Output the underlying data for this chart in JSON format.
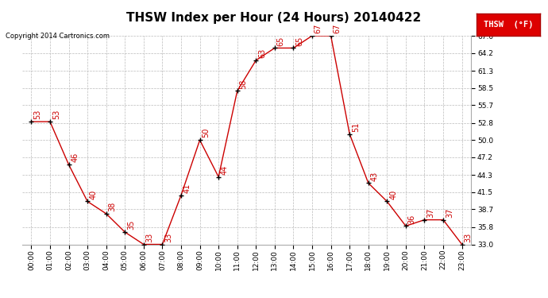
{
  "title": "THSW Index per Hour (24 Hours) 20140422",
  "copyright": "Copyright 2014 Cartronics.com",
  "legend_label": "THSW  (°F)",
  "hours": [
    "00:00",
    "01:00",
    "02:00",
    "03:00",
    "04:00",
    "05:00",
    "06:00",
    "07:00",
    "08:00",
    "09:00",
    "10:00",
    "11:00",
    "12:00",
    "13:00",
    "14:00",
    "15:00",
    "16:00",
    "17:00",
    "18:00",
    "19:00",
    "20:00",
    "21:00",
    "22:00",
    "23:00"
  ],
  "values": [
    53,
    53,
    46,
    40,
    38,
    35,
    33,
    33,
    41,
    50,
    44,
    58,
    63,
    65,
    65,
    67,
    67,
    51,
    43,
    40,
    36,
    37,
    37,
    33
  ],
  "line_color": "#cc0000",
  "marker_color": "#000000",
  "bg_color": "#ffffff",
  "grid_color": "#bbbbbb",
  "ylim_min": 33.0,
  "ylim_max": 67.0,
  "yticks": [
    33.0,
    35.8,
    38.7,
    41.5,
    44.3,
    47.2,
    50.0,
    52.8,
    55.7,
    58.5,
    61.3,
    64.2,
    67.0
  ],
  "title_fontsize": 11,
  "label_fontsize": 7,
  "tick_fontsize": 6.5,
  "legend_fontsize": 7.5,
  "copyright_fontsize": 6
}
